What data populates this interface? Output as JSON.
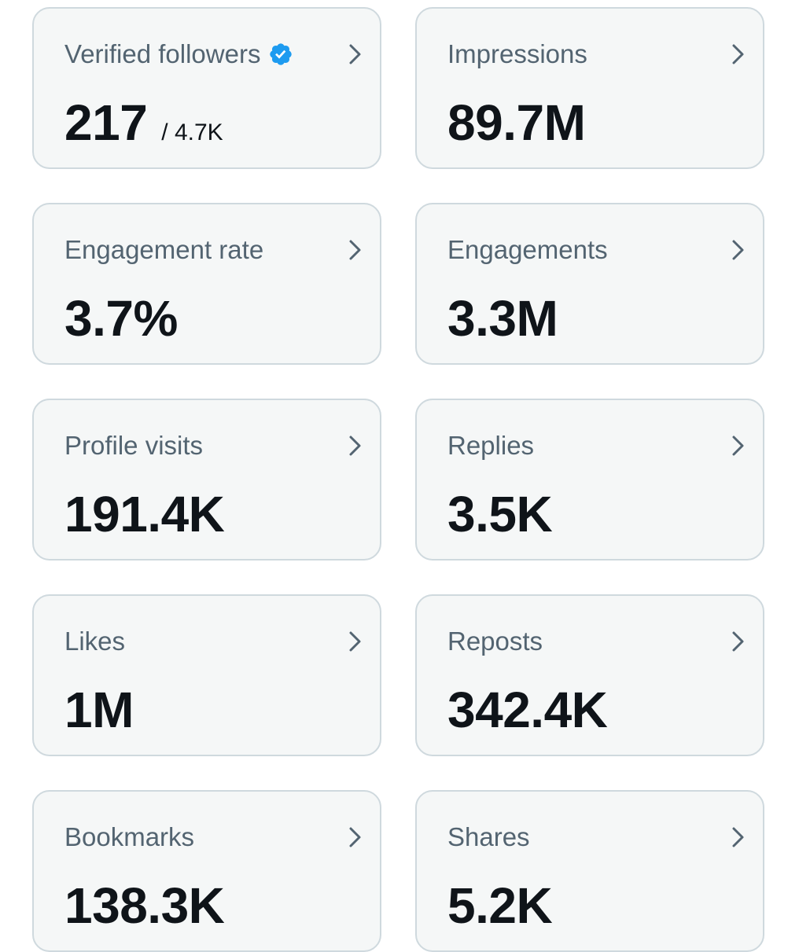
{
  "colors": {
    "card_background": "#f5f7f7",
    "card_border": "#cfd9de",
    "label": "#536471",
    "value": "#0f1419",
    "verified_badge": "#1d9bf0"
  },
  "cards": [
    {
      "label": "Verified followers",
      "value": "217",
      "subvalue": "/ 4.7K",
      "icon": "verified-badge-icon"
    },
    {
      "label": "Impressions",
      "value": "89.7M"
    },
    {
      "label": "Engagement rate",
      "value": "3.7%"
    },
    {
      "label": "Engagements",
      "value": "3.3M"
    },
    {
      "label": "Profile visits",
      "value": "191.4K"
    },
    {
      "label": "Replies",
      "value": "3.5K"
    },
    {
      "label": "Likes",
      "value": "1M"
    },
    {
      "label": "Reposts",
      "value": "342.4K"
    },
    {
      "label": "Bookmarks",
      "value": "138.3K"
    },
    {
      "label": "Shares",
      "value": "5.2K"
    }
  ]
}
